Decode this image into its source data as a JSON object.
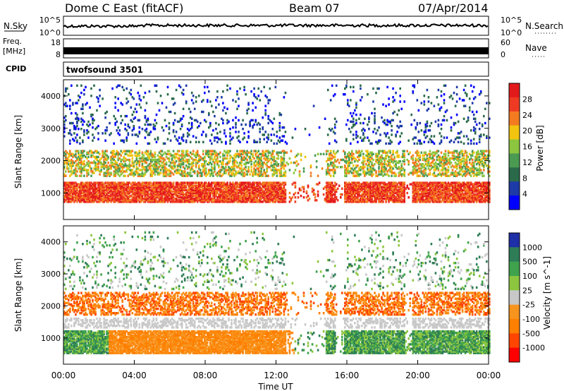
{
  "header": {
    "radar": "Dome C East (fitACF)",
    "beam": "Beam 07",
    "date": "07/Apr/2014",
    "cpid_label": "CPID",
    "cpid_value": "twofsound 3501"
  },
  "panel_nsky": {
    "left_label": "N.Sky",
    "left_top": "10^5",
    "left_bottom": "10^0",
    "right_label": "N.Search",
    "right_top": "10^5",
    "right_bottom": "10^0"
  },
  "panel_freq": {
    "left_label_line1": "Freq.",
    "left_label_line2": "[MHz]",
    "left_top": "18",
    "left_bottom": "8",
    "right_label": "Nave",
    "right_top": "60",
    "right_bottom": "0"
  },
  "colors": {
    "power": [
      "#0000ff",
      "#1d3aa6",
      "#2a6a4a",
      "#4a9a52",
      "#8cc63f",
      "#f2c40f",
      "#f47b20",
      "#ef3a23",
      "#e31a1c"
    ],
    "velocity": [
      "#ff0000",
      "#ff4500",
      "#ff7f00",
      "#f7941d",
      "#c8c8c8",
      "#8cc63f",
      "#3fa34d",
      "#2e7d57",
      "#1f2fa8"
    ]
  },
  "chart_data": [
    {
      "type": "heatmap",
      "name": "power",
      "xlabel": "Time UT",
      "ylabel": "Slant Range [km]",
      "x_ticks": [
        "00:00",
        "04:00",
        "08:00",
        "12:00",
        "16:00",
        "20:00",
        "00:00"
      ],
      "xlim": [
        0,
        24
      ],
      "y_ticks": [
        "1000",
        "2000",
        "3000",
        "4000"
      ],
      "ylim": [
        180,
        4500
      ],
      "colorbar_label": "Power [dB]",
      "colorbar_ticks": [
        "4",
        "8",
        "12",
        "16",
        "20",
        "24",
        "28"
      ]
    },
    {
      "type": "heatmap",
      "name": "velocity",
      "xlabel": "Time UT",
      "ylabel": "Slant Range [km]",
      "x_ticks": [
        "00:00",
        "04:00",
        "08:00",
        "12:00",
        "16:00",
        "20:00",
        "00:00"
      ],
      "xlim": [
        0,
        24
      ],
      "y_ticks": [
        "1000",
        "2000",
        "3000",
        "4000"
      ],
      "ylim": [
        180,
        4500
      ],
      "colorbar_label": "Velocity [m s^-1]",
      "colorbar_ticks": [
        "1000",
        "500",
        "100",
        "25",
        "-25",
        "-100",
        "-500",
        "-1000"
      ]
    }
  ]
}
